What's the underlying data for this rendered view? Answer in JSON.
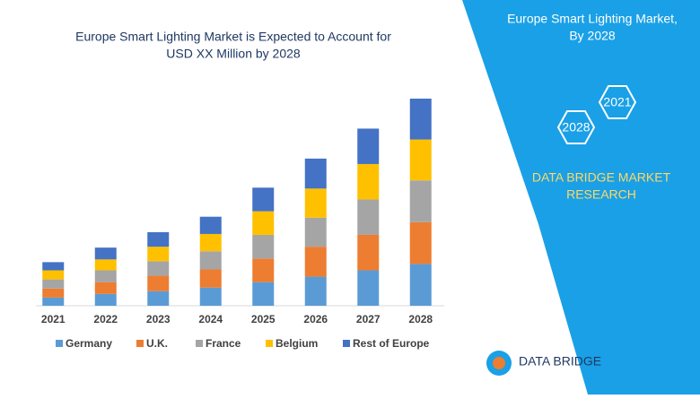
{
  "chart_data": {
    "type": "bar",
    "stacked": true,
    "title": [
      "Europe Smart Lighting Market is Expected to Account for",
      "USD XX Million by 2028"
    ],
    "categories": [
      "2021",
      "2022",
      "2023",
      "2024",
      "2025",
      "2026",
      "2027",
      "2028"
    ],
    "series": [
      {
        "name": "Germany",
        "color": "#5b9bd5",
        "values": [
          9,
          13,
          16,
          20,
          26,
          32,
          39,
          46
        ]
      },
      {
        "name": "U.K.",
        "color": "#ed7d31",
        "values": [
          10,
          13,
          17,
          20,
          26,
          33,
          39,
          46
        ]
      },
      {
        "name": "France",
        "color": "#a5a5a5",
        "values": [
          10,
          13,
          16,
          20,
          26,
          32,
          39,
          46
        ]
      },
      {
        "name": "Belgium",
        "color": "#ffc000",
        "values": [
          10,
          12,
          16,
          19,
          26,
          32,
          39,
          45
        ]
      },
      {
        "name": "Rest of Europe",
        "color": "#4472c4",
        "values": [
          9,
          13,
          16,
          19,
          26,
          33,
          39,
          45
        ]
      }
    ],
    "legend": "bottom"
  },
  "panel": {
    "heading": [
      "Europe Smart Lighting Market,",
      "By 2028"
    ],
    "hexagons": [
      "2021",
      "2028"
    ],
    "brand": [
      "DATA BRIDGE MARKET",
      "RESEARCH"
    ]
  },
  "logo": "DATA BRIDGE"
}
